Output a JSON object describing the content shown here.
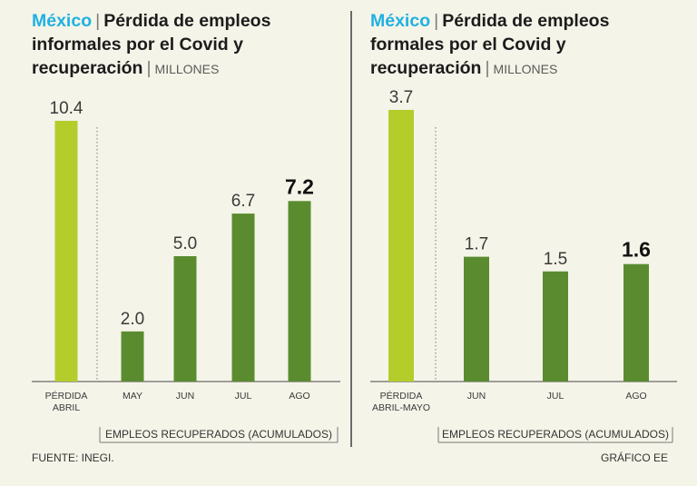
{
  "chart_data": [
    {
      "type": "bar",
      "country": "México",
      "title": "Pérdida de empleos informales por el Covid y recuperación",
      "unit": "MILLONES",
      "categories": [
        "PÉRDIDA ABRIL",
        "MAY",
        "JUN",
        "JUL",
        "AGO"
      ],
      "values": [
        10.4,
        2.0,
        5.0,
        6.7,
        7.2
      ],
      "value_labels": [
        "10.4",
        "2.0",
        "5.0",
        "6.7",
        "7.2"
      ],
      "highlight_index": 4,
      "group_label": "EMPLEOS RECUPERADOS (ACUMULADOS)",
      "colors": {
        "loss": "#b5cd2b",
        "recovered": "#5a8c2f"
      },
      "ylim": [
        0,
        10.4
      ]
    },
    {
      "type": "bar",
      "country": "México",
      "title": "Pérdida de empleos formales por el Covid y recuperación",
      "unit": "MILLONES",
      "categories": [
        "PÉRDIDA ABRIL-MAYO",
        "JUN",
        "JUL",
        "AGO"
      ],
      "values": [
        3.7,
        1.7,
        1.5,
        1.6
      ],
      "value_labels": [
        "3.7",
        "1.7",
        "1.5",
        "1.6"
      ],
      "highlight_index": 3,
      "group_label": "EMPLEOS RECUPERADOS (ACUMULADOS)",
      "colors": {
        "loss": "#b5cd2b",
        "recovered": "#5a8c2f"
      },
      "ylim": [
        0,
        3.7
      ]
    }
  ],
  "source": "FUENTE: INEGI.",
  "credit": "GRÁFICO EE"
}
